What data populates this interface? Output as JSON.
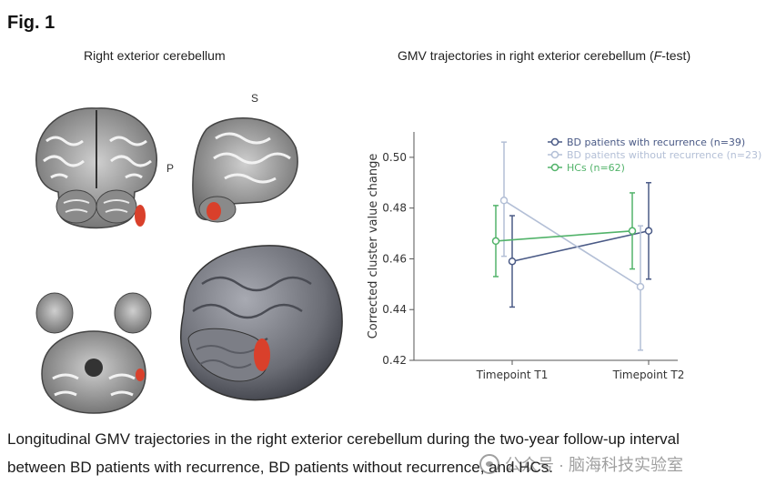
{
  "figure_label": "Fig. 1",
  "left_panel": {
    "title": "Right exterior cerebellum",
    "orientation_labels": {
      "superior": "S",
      "posterior": "P"
    },
    "highlight_color": "#d9402b"
  },
  "right_panel": {
    "title_prefix": "GMV trajectories in right exterior cerebellum (",
    "title_italic": "F",
    "title_suffix": "-test)"
  },
  "chart_data": {
    "type": "line",
    "title": "GMV trajectories in right exterior cerebellum (F-test)",
    "xlabel": "",
    "ylabel": "Corrected cluster value change",
    "categories": [
      "Timepoint T1",
      "Timepoint T2"
    ],
    "ylim": [
      0.42,
      0.51
    ],
    "yticks": [
      "0.42",
      "0.44",
      "0.46",
      "0.48",
      "0.50"
    ],
    "legend_position": "top-right",
    "grid": false,
    "series": [
      {
        "name": "BD patients with recurrence (n=39)",
        "color": "#4a5a86",
        "x_offset": 0.0,
        "values": [
          0.459,
          0.471
        ],
        "err_low": [
          0.441,
          0.452
        ],
        "err_high": [
          0.477,
          0.49
        ]
      },
      {
        "name": "BD patients without recurrence (n=23)",
        "color": "#b3bfd6",
        "x_offset": -0.06,
        "values": [
          0.483,
          0.449
        ],
        "err_low": [
          0.461,
          0.424
        ],
        "err_high": [
          0.506,
          0.473
        ]
      },
      {
        "name": "HCs (n=62)",
        "color": "#52b36a",
        "x_offset": -0.12,
        "values": [
          0.467,
          0.471
        ],
        "err_low": [
          0.453,
          0.456
        ],
        "err_high": [
          0.481,
          0.486
        ]
      }
    ]
  },
  "caption": {
    "line1": "Longitudinal GMV trajectories in the right exterior cerebellum during the two-year follow-up interval",
    "line2": "between BD patients with recurrence, BD patients without recurrence, and HCs."
  },
  "watermark": "公众号 · 脑海科技实验室"
}
